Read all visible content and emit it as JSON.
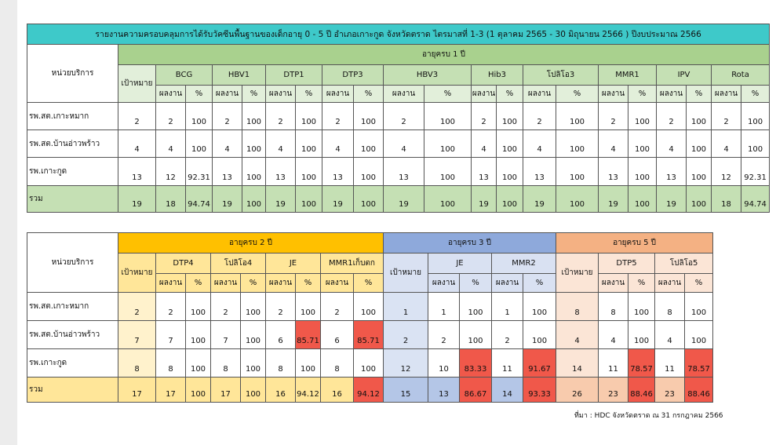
{
  "title": "รายงานความครอบคลุมการได้รับวัคซีนพื้นฐานของเด็กอายุ 0 - 5 ปี อำเภอเกาะกูด จังหวัดตราด ไตรมาสที่ 1-3 (1 ตุลาคม 2565 - 30 มิถุนายน 2566 ) ปีงบประมาณ 2566",
  "table1": {
    "unit_header": "หน่วยบริการ",
    "group": "อายุครบ 1 ปี",
    "target_header": "เป้าหมาย",
    "result_header": "ผลงาน",
    "percent_header": "%",
    "vaccines": [
      "BCG",
      "HBV1",
      "DTP1",
      "DTP3",
      "HBV3",
      "Hib3",
      "โปลิโอ3",
      "MMR1",
      "IPV",
      "Rota"
    ],
    "rows": [
      {
        "unit": "รพ.สต.เกาะหมาก",
        "values": [
          2,
          2,
          100,
          2,
          100,
          2,
          100,
          2,
          100,
          2,
          100,
          2,
          100,
          2,
          100,
          2,
          100,
          2,
          100,
          2,
          100
        ]
      },
      {
        "unit": "รพ.สต.บ้านอ่าวพร้าว",
        "values": [
          4,
          4,
          100,
          4,
          100,
          4,
          100,
          4,
          100,
          4,
          100,
          4,
          100,
          4,
          100,
          4,
          100,
          4,
          100,
          4,
          100
        ]
      },
      {
        "unit": "รพ.เกาะกูด",
        "values": [
          13,
          12,
          92.31,
          13,
          100,
          13,
          100,
          13,
          100,
          13,
          100,
          13,
          100,
          13,
          100,
          13,
          100,
          13,
          100,
          12,
          92.31
        ]
      },
      {
        "unit": "รวม",
        "values": [
          19,
          18,
          94.74,
          19,
          100,
          19,
          100,
          19,
          100,
          19,
          100,
          19,
          100,
          19,
          100,
          19,
          100,
          19,
          100,
          18,
          94.74
        ]
      }
    ]
  },
  "table2": {
    "unit_header": "หน่วยบริการ",
    "result_header": "ผลงาน",
    "percent_header": "%",
    "groups": [
      {
        "name": "อายุครบ 2 ปี",
        "target_header": "เป้าหมาย",
        "vaccines": [
          "DTP4",
          "โปลิโอ4",
          "JE",
          "MMR1เก็บตก"
        ]
      },
      {
        "name": "อายุครบ 3 ปี",
        "target_header": "เป้าหมาย",
        "vaccines": [
          "JE",
          "MMR2"
        ]
      },
      {
        "name": "อายุครบ 5 ปี",
        "target_header": "เป้าหมาย",
        "vaccines": [
          "DTP5",
          "โปลิโอ5"
        ]
      }
    ],
    "rows": [
      {
        "unit": "รพ.สต.เกาะหมาก",
        "values": [
          [
            2,
            2,
            100,
            2,
            100,
            2,
            100,
            2,
            100
          ],
          [
            1,
            1,
            100,
            1,
            100
          ],
          [
            8,
            8,
            100,
            8,
            100
          ]
        ]
      },
      {
        "unit": "รพ.สต.บ้านอ่าวพร้าว",
        "values": [
          [
            7,
            7,
            100,
            7,
            100,
            6,
            85.71,
            6,
            85.71
          ],
          [
            2,
            2,
            100,
            2,
            100
          ],
          [
            4,
            4,
            100,
            4,
            100
          ]
        ]
      },
      {
        "unit": "รพ.เกาะกูด",
        "values": [
          [
            8,
            8,
            100,
            8,
            100,
            8,
            100,
            8,
            100
          ],
          [
            12,
            10,
            83.33,
            11,
            91.67
          ],
          [
            14,
            11,
            78.57,
            11,
            78.57
          ]
        ]
      },
      {
        "unit": "รวม",
        "values": [
          [
            17,
            17,
            100,
            17,
            100,
            16,
            94.12,
            16,
            94.12
          ],
          [
            15,
            13,
            86.67,
            14,
            93.33
          ],
          [
            26,
            23,
            88.46,
            23,
            88.46
          ]
        ]
      }
    ]
  },
  "source": "ที่มา : HDC จังหวัดตราด ณ 31 กรกฎาคม 2566"
}
